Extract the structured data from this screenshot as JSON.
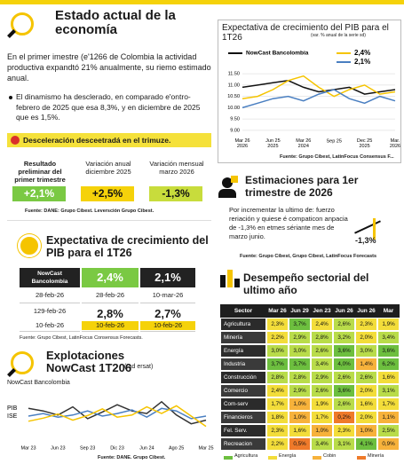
{
  "estado": {
    "title": "Estado actual de la economía",
    "intro": "En el primer imestre (e'1266 de Colombia la actividad productiva expandtó 21% anualmente, su riemo estimado anual.",
    "bullet": "El dinamismo ha desclerado, en comparado e'ontro-febrero de 2025 que esa 8,3%, y en diciembre de 2025 que es 1,5%.",
    "highlight": "Desceleración desceetradá en el trimuze.",
    "stats": [
      {
        "label": "Resultado preliminar del primer trimestre",
        "value": "+2,1%",
        "color": "#7ac943"
      },
      {
        "label": "Variación anual diciembre 2025",
        "value": "+2,5%",
        "color": "#f5d20a"
      },
      {
        "label": "Variación mensual marzo 2026",
        "value": "-1,3%",
        "color": "#c8dc3c"
      }
    ],
    "source": "Fuente: DANE: Grupo Cibest. Leversción Grupo Cibest."
  },
  "expectativa": {
    "title": "Expectativa de crecimiento del PIB para el 1T26",
    "header": [
      "NowCast Bancolombia",
      "2,4%",
      "2,1%"
    ],
    "rows": [
      [
        [
          "28-feb-26"
        ],
        [
          "28-feb-26"
        ],
        [
          "10-mar-26"
        ]
      ],
      [
        [
          "129-feb-26",
          "10-feb-26"
        ],
        [
          "2,8%",
          "10-feb-26"
        ],
        [
          "2,7%",
          "10-feb-26"
        ]
      ]
    ],
    "source": "Fuente: Grupo Cibest, LatinFocus Consensus Forecasts."
  },
  "explotaciones": {
    "title": "Explotaciones NowCast 1T206",
    "note": "(rad ersat)",
    "chart_label": "NowCast Bancolombia",
    "source": "Fuente: DANE. Grupo Cibest."
  },
  "estimaciones": {
    "title": "Estimaciones para 1er trimestre de 2026",
    "text": "Por incrementar la ultimo de: fuerzo reriación y quiese é compaticon anpacia de -1,3% en etmes sériante mes de marzo junio.",
    "callout": "-1,3%",
    "source": "Fuente: Grupo Cibest, Grupo Cibest, LatinFocus Forecasts"
  },
  "desempeno": {
    "title": "Desempeño sectorial del ultimo año",
    "header": [
      "Sector",
      "Mar 26",
      "Jun 29",
      "Jen 23",
      "Jun 26",
      "Jun 26",
      "Mar"
    ],
    "rows": [
      [
        "Agricultura",
        "2,3%",
        "3,7%",
        "2,4%",
        "2,6%",
        "2,3%",
        "1,9%"
      ],
      [
        "Minería",
        "2,2%",
        "2,9%",
        "2,8%",
        "3,2%",
        "2,0%",
        "3,4%"
      ],
      [
        "Energía",
        "3,0%",
        "3,0%",
        "2,6%",
        "3,6%",
        "3,0%",
        "3,6%"
      ],
      [
        "Industria",
        "3,7%",
        "3,7%",
        "3,4%",
        "4,0%",
        "1,4%",
        "6,2%"
      ],
      [
        "Construcción",
        "2,8%",
        "2,8%",
        "2,9%",
        "2,6%",
        "2,6%",
        "1,6%"
      ],
      [
        "Comercio",
        "2,4%",
        "2,9%",
        "2,6%",
        "3,6%",
        "2,0%",
        "3,1%"
      ],
      [
        "Com-serv",
        "1,7%",
        "1,0%",
        "1,9%",
        "2,6%",
        "1,6%",
        "1,7%"
      ],
      [
        "Financieros",
        "1,8%",
        "1,0%",
        "1,7%",
        "0,2%",
        "2,0%",
        "1,1%"
      ],
      [
        "Fel. Serv.",
        "2,3%",
        "1,6%",
        "1,0%",
        "2,3%",
        "1,0%",
        "2,5%"
      ],
      [
        "Recreacion",
        "2,2%",
        "0,5%",
        "3,4%",
        "3,1%",
        "4,1%",
        "0,9%"
      ]
    ],
    "legend": [
      "Agricultura",
      "Energía",
      "Cobin",
      "Minería"
    ]
  },
  "chart_data": [
    {
      "type": "line",
      "title": "Expectativa de crecimiento del PIB para el 1T26",
      "subtitle": "(var. % anual de la serie sd)",
      "categories": [
        "Mar 26\n2026",
        null,
        "Jun 25\n2025",
        null,
        "Mar 26\n2024",
        null,
        "Sep 25",
        null,
        "Dec 25\n2025",
        null,
        "Mar.\n2026"
      ],
      "series": [
        {
          "name": "NowCast Bancolombia",
          "color": "#111111",
          "values": [
            10.9,
            11.0,
            11.1,
            11.2,
            10.9,
            10.7,
            10.8,
            10.9,
            10.6,
            10.7,
            10.8
          ]
        },
        {
          "name": "2,4%",
          "color": "#f5c400",
          "values": [
            10.4,
            10.5,
            10.8,
            11.2,
            11.4,
            10.9,
            10.5,
            10.8,
            11.0,
            10.6,
            10.7
          ]
        },
        {
          "name": "2,1%",
          "color": "#4a7fc1",
          "values": [
            10.0,
            10.2,
            10.4,
            10.5,
            10.3,
            10.6,
            10.8,
            10.4,
            10.2,
            10.5,
            10.3
          ]
        }
      ],
      "ylim": [
        8.8,
        11.7
      ],
      "yticks": [
        {
          "value": 11.5,
          "label": "11.50"
        },
        {
          "value": 11,
          "label": "11.00"
        },
        {
          "value": 10.5,
          "label": "10.50"
        },
        {
          "value": 10,
          "label": "10.00"
        },
        {
          "value": 9.5,
          "label": "9.50"
        },
        {
          "value": 9,
          "label": "9.00"
        }
      ],
      "grid": true,
      "source": "Fuente: Grupo Cibest, LatinFocus Consensus F..."
    },
    {
      "type": "line",
      "categories": [
        "Mar 23",
        null,
        "Jun 23",
        null,
        "Sep 23",
        null,
        "Dic 23",
        null,
        "Jun 24",
        null,
        "Ago 25",
        null,
        "Mar 25"
      ],
      "series": [
        {
          "name": "PIB",
          "color": "#333333",
          "values": [
            6.5,
            6.0,
            5.2,
            6.8,
            4.5,
            5.8,
            7.2,
            6.0,
            5.5,
            7.8,
            5.2,
            3.5,
            4.2
          ]
        },
        {
          "name": "ISE",
          "color": "#4a7fc1",
          "values": [
            5.0,
            5.5,
            4.8,
            5.2,
            6.0,
            5.0,
            5.5,
            6.2,
            4.8,
            6.5,
            6.0,
            4.5,
            5.0
          ]
        },
        {
          "name": "NowCast Bancolombia",
          "color": "#f5c400",
          "values": [
            4.0,
            4.6,
            5.4,
            4.2,
            5.1,
            6.4,
            4.8,
            5.2,
            6.8,
            5.5,
            7.0,
            5.0,
            3.0
          ]
        }
      ],
      "ylim": [
        0,
        10
      ],
      "grid": false
    }
  ]
}
